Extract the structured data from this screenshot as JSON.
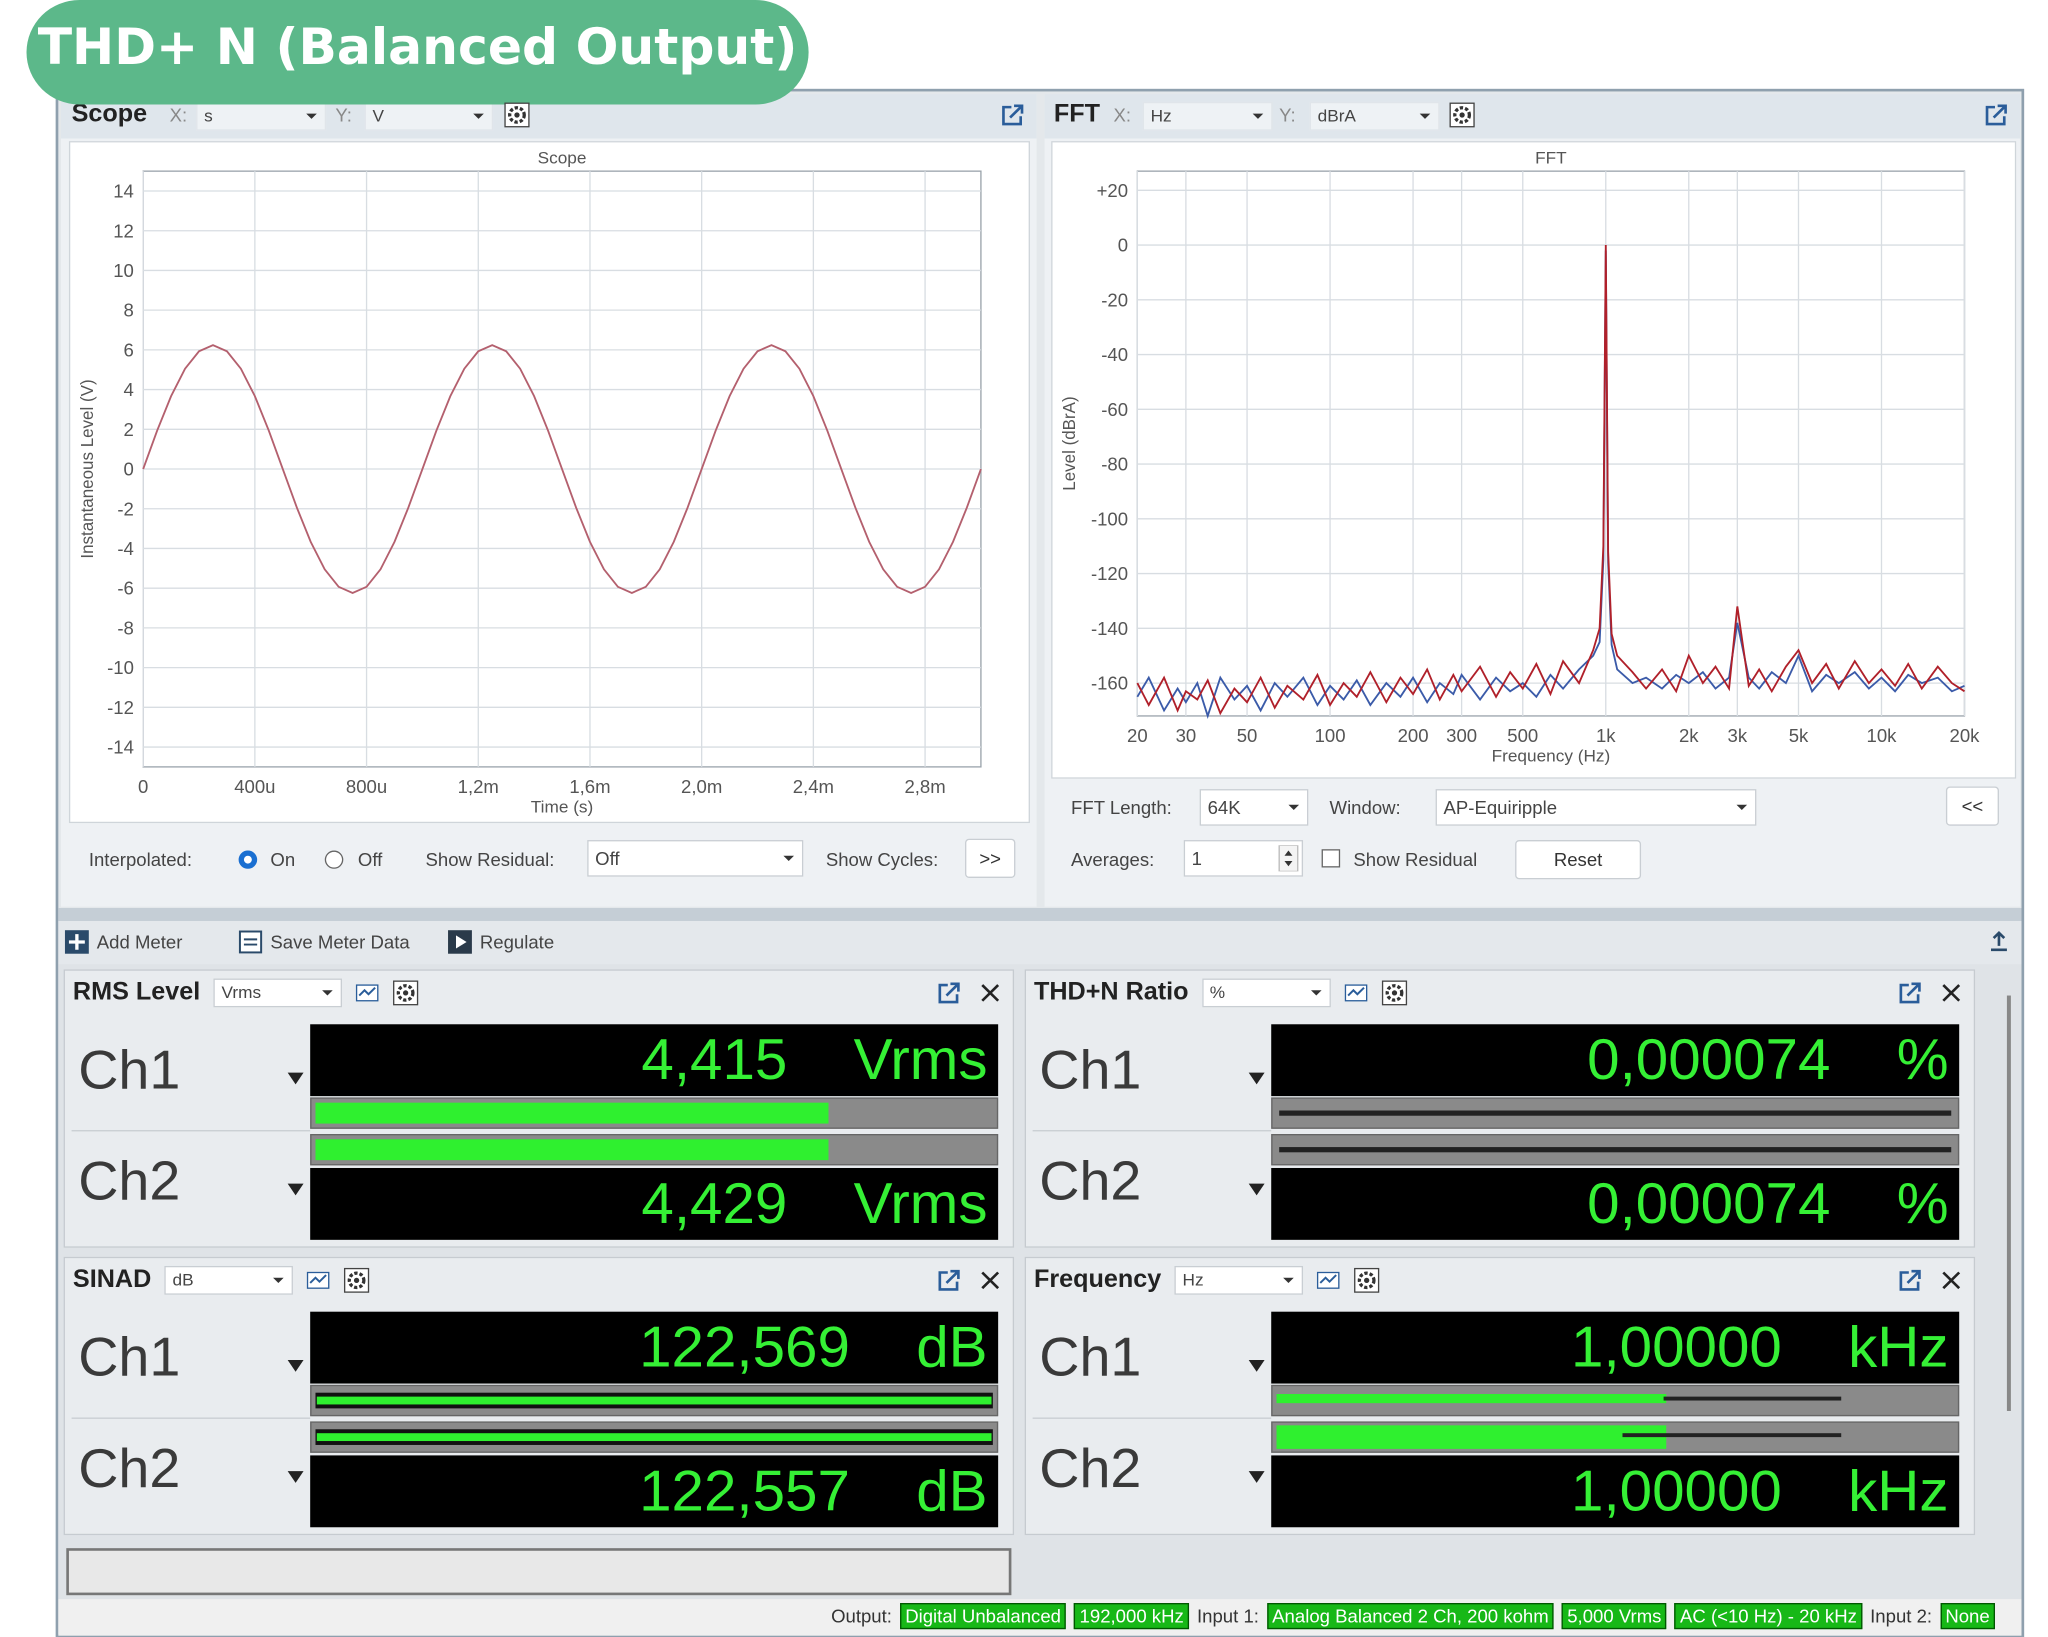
{
  "header": {
    "title": "THD+ N (Balanced Output)"
  },
  "scope_panel": {
    "title": "Scope",
    "x_label": "X:",
    "x_unit": "s",
    "y_label": "Y:",
    "y_unit": "V",
    "interpolated_label": "Interpolated:",
    "on": "On",
    "off": "Off",
    "show_residual_label": "Show Residual:",
    "show_residual": "Off",
    "show_cycles_label": "Show Cycles:",
    "show_cycles_button": ">>"
  },
  "fft_panel": {
    "title": "FFT",
    "x_label": "X:",
    "x_unit": "Hz",
    "y_label": "Y:",
    "y_unit": "dBrA",
    "fft_length_label": "FFT Length:",
    "fft_length": "64K",
    "window_label": "Window:",
    "window": "AP-Equiripple",
    "collapse_button": "<<",
    "averages_label": "Averages:",
    "averages": 1,
    "show_residual": "Show Residual",
    "reset": "Reset"
  },
  "chart_data": [
    {
      "type": "line",
      "title": "Scope",
      "x_label": "Time (s)",
      "y_label": "Instantaneous Level (V)",
      "grid": true,
      "xlim": [
        0,
        0.003
      ],
      "ylim": [
        -15,
        15
      ],
      "xticks": [
        0,
        {
          "value": 0.0004,
          "label": "400u"
        },
        {
          "value": 0.0008,
          "label": "800u"
        },
        {
          "value": 0.0012,
          "label": "1,2m"
        },
        {
          "value": 0.0016,
          "label": "1,6m"
        },
        {
          "value": 0.002,
          "label": "2,0m"
        },
        {
          "value": 0.0024,
          "label": "2,4m"
        },
        {
          "value": 0.0028,
          "label": "2,8m"
        }
      ],
      "yticks": [
        -14,
        -12,
        -10,
        -8,
        -6,
        -4,
        -2,
        0,
        2,
        4,
        6,
        8,
        10,
        12,
        14
      ],
      "x": [
        0,
        5e-05,
        0.0001,
        0.00015,
        0.0002,
        0.00025,
        0.0003,
        0.00035,
        0.0004,
        0.00045,
        0.0005,
        0.00055,
        0.0006,
        0.00065,
        0.0007,
        0.00075,
        0.0008,
        0.00085,
        0.0009,
        0.00095,
        0.001,
        0.00105,
        0.0011,
        0.00115,
        0.0012,
        0.00125,
        0.0013,
        0.00135,
        0.0014,
        0.00145,
        0.0015,
        0.00155,
        0.0016,
        0.00165,
        0.0017,
        0.00175,
        0.0018,
        0.00185,
        0.0019,
        0.00195,
        0.002,
        0.00205,
        0.0021,
        0.00215,
        0.0022,
        0.00225,
        0.0023,
        0.00235,
        0.0024,
        0.00245,
        0.0025,
        0.00255,
        0.0026,
        0.00265,
        0.0027,
        0.00275,
        0.0028,
        0.00285,
        0.0029,
        0.00295,
        0.003
      ],
      "series": [
        {
          "color": "#b4606e",
          "values": [
            0,
            1.93,
            3.67,
            5.05,
            5.93,
            6.24,
            5.93,
            5.05,
            3.67,
            1.93,
            0,
            -1.93,
            -3.67,
            -5.05,
            -5.93,
            -6.24,
            -5.93,
            -5.05,
            -3.67,
            -1.93,
            0,
            1.93,
            3.67,
            5.05,
            5.93,
            6.24,
            5.93,
            5.05,
            3.67,
            1.93,
            0,
            -1.93,
            -3.67,
            -5.05,
            -5.93,
            -6.24,
            -5.93,
            -5.05,
            -3.67,
            -1.93,
            0,
            1.93,
            3.67,
            5.05,
            5.93,
            6.24,
            5.93,
            5.05,
            3.67,
            1.93,
            0,
            -1.93,
            -3.67,
            -5.05,
            -5.93,
            -6.24,
            -5.93,
            -5.05,
            -3.67,
            -1.93,
            0
          ]
        }
      ]
    },
    {
      "type": "line",
      "title": "FFT",
      "x_label": "Frequency (Hz)",
      "y_label": "Level (dBrA)",
      "grid": true,
      "log_x": true,
      "xlim": [
        20,
        20000
      ],
      "ylim": [
        -172,
        27
      ],
      "xticks": [
        20,
        30,
        50,
        100,
        200,
        300,
        500,
        {
          "value": 1000,
          "label": "1k"
        },
        {
          "value": 2000,
          "label": "2k"
        },
        {
          "value": 3000,
          "label": "3k"
        },
        {
          "value": 5000,
          "label": "5k"
        },
        {
          "value": 10000,
          "label": "10k"
        },
        {
          "value": 20000,
          "label": "20k"
        }
      ],
      "yticks": [
        {
          "value": 20,
          "label": "+20"
        },
        0,
        -20,
        -40,
        -60,
        -80,
        -100,
        -120,
        -140,
        -160
      ],
      "x": [
        20,
        22,
        25,
        28,
        30,
        33,
        36,
        40,
        45,
        50,
        56,
        63,
        70,
        80,
        90,
        100,
        112,
        125,
        140,
        160,
        180,
        200,
        225,
        250,
        280,
        300,
        350,
        400,
        450,
        500,
        560,
        630,
        700,
        800,
        900,
        950,
        980,
        1000,
        1020,
        1050,
        1100,
        1250,
        1400,
        1600,
        1800,
        2000,
        2250,
        2500,
        2800,
        3000,
        3300,
        3600,
        4000,
        4500,
        5000,
        5600,
        6300,
        7000,
        8000,
        9000,
        10000,
        11200,
        12500,
        14000,
        16000,
        18000,
        20000
      ],
      "series": [
        {
          "color": "#3b5ba9",
          "values": [
            -165,
            -158,
            -170,
            -162,
            -167,
            -160,
            -172,
            -158,
            -166,
            -161,
            -170,
            -160,
            -165,
            -158,
            -168,
            -161,
            -166,
            -159,
            -168,
            -160,
            -165,
            -158,
            -167,
            -160,
            -164,
            -157,
            -166,
            -158,
            -163,
            -160,
            -165,
            -157,
            -162,
            -155,
            -150,
            -145,
            -115,
            -2,
            -116,
            -146,
            -155,
            -160,
            -158,
            -162,
            -157,
            -160,
            -156,
            -162,
            -158,
            -138,
            -158,
            -162,
            -156,
            -160,
            -150,
            -163,
            -157,
            -160,
            -156,
            -162,
            -158,
            -163,
            -157,
            -160,
            -158,
            -163,
            -161
          ]
        },
        {
          "color": "#b0202a",
          "values": [
            -160,
            -168,
            -158,
            -170,
            -163,
            -166,
            -159,
            -171,
            -162,
            -167,
            -158,
            -169,
            -161,
            -166,
            -157,
            -168,
            -160,
            -165,
            -156,
            -167,
            -158,
            -164,
            -155,
            -166,
            -157,
            -163,
            -154,
            -165,
            -156,
            -162,
            -153,
            -164,
            -152,
            -160,
            -148,
            -140,
            -110,
            0,
            -112,
            -142,
            -150,
            -156,
            -162,
            -155,
            -163,
            -150,
            -160,
            -154,
            -162,
            -132,
            -161,
            -155,
            -163,
            -154,
            -148,
            -160,
            -153,
            -162,
            -152,
            -160,
            -155,
            -161,
            -153,
            -162,
            -154,
            -160,
            -163
          ]
        }
      ]
    }
  ],
  "meter_toolbar": {
    "add_meter": "Add Meter",
    "save_meter_data": "Save Meter Data",
    "regulate": "Regulate"
  },
  "meters": [
    {
      "title": "RMS Level",
      "unit_select": "Vrms",
      "channels": [
        {
          "label": "Ch1",
          "value": "4,415",
          "unit": "Vrms"
        },
        {
          "label": "Ch2",
          "value": "4,429",
          "unit": "Vrms"
        }
      ]
    },
    {
      "title": "THD+N Ratio",
      "unit_select": "%",
      "channels": [
        {
          "label": "Ch1",
          "value": "0,000074",
          "unit": "%"
        },
        {
          "label": "Ch2",
          "value": "0,000074",
          "unit": "%"
        }
      ]
    },
    {
      "title": "SINAD",
      "unit_select": "dB",
      "channels": [
        {
          "label": "Ch1",
          "value": "122,569",
          "unit": "dB"
        },
        {
          "label": "Ch2",
          "value": "122,557",
          "unit": "dB"
        }
      ]
    },
    {
      "title": "Frequency",
      "unit_select": "Hz",
      "channels": [
        {
          "label": "Ch1",
          "value": "1,00000",
          "unit": "kHz"
        },
        {
          "label": "Ch2",
          "value": "1,00000",
          "unit": "kHz"
        }
      ]
    }
  ],
  "status_bar": {
    "output_label": "Output:",
    "output": [
      "Digital Unbalanced",
      "192,000 kHz"
    ],
    "input1_label": "Input 1:",
    "input1": [
      "Analog Balanced 2 Ch, 200 kohm",
      "5,000 Vrms",
      "AC (<10 Hz) - 20 kHz"
    ],
    "input2_label": "Input 2:",
    "input2": [
      "None"
    ]
  }
}
